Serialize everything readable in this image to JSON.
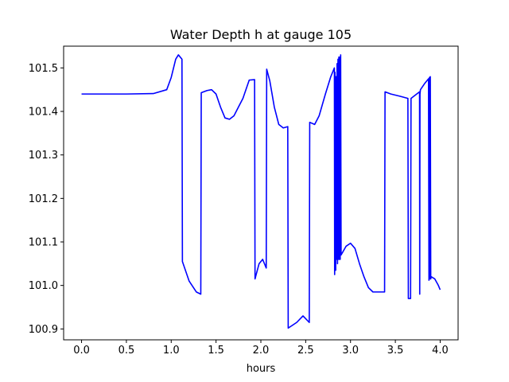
{
  "chart_data": {
    "type": "line",
    "title": "Water Depth h at gauge 105",
    "xlabel": "hours",
    "ylabel": "",
    "xlim": [
      -0.2,
      4.2
    ],
    "ylim": [
      100.875,
      101.55
    ],
    "x_ticks": [
      {
        "value": 0.0,
        "label": "0.0"
      },
      {
        "value": 0.5,
        "label": "0.5"
      },
      {
        "value": 1.0,
        "label": "1.0"
      },
      {
        "value": 1.5,
        "label": "1.5"
      },
      {
        "value": 2.0,
        "label": "2.0"
      },
      {
        "value": 2.5,
        "label": "2.5"
      },
      {
        "value": 3.0,
        "label": "3.0"
      },
      {
        "value": 3.5,
        "label": "3.5"
      },
      {
        "value": 4.0,
        "label": "4.0"
      }
    ],
    "y_ticks": [
      {
        "value": 100.9,
        "label": "100.9"
      },
      {
        "value": 101.0,
        "label": "101.0"
      },
      {
        "value": 101.1,
        "label": "101.1"
      },
      {
        "value": 101.2,
        "label": "101.2"
      },
      {
        "value": 101.3,
        "label": "101.3"
      },
      {
        "value": 101.4,
        "label": "101.4"
      },
      {
        "value": 101.5,
        "label": "101.5"
      }
    ],
    "grid": false,
    "series": [
      {
        "color": "#0000ff",
        "x": [
          0.0,
          0.5,
          0.8,
          0.95,
          1.0,
          1.05,
          1.08,
          1.12,
          1.125,
          1.2,
          1.28,
          1.33,
          1.335,
          1.4,
          1.45,
          1.5,
          1.55,
          1.6,
          1.65,
          1.7,
          1.75,
          1.8,
          1.87,
          1.93,
          1.935,
          1.98,
          2.02,
          2.06,
          2.065,
          2.1,
          2.15,
          2.2,
          2.25,
          2.3,
          2.305,
          2.4,
          2.47,
          2.54,
          2.545,
          2.6,
          2.65,
          2.72,
          2.78,
          2.82,
          2.823,
          2.827,
          2.835,
          2.838,
          2.845,
          2.85,
          2.855,
          2.86,
          2.865,
          2.87,
          2.875,
          2.88,
          2.885,
          2.89,
          2.895,
          2.95,
          3.0,
          3.05,
          3.1,
          3.15,
          3.2,
          3.25,
          3.3,
          3.38,
          3.385,
          3.45,
          3.55,
          3.64,
          3.645,
          3.67,
          3.675,
          3.77,
          3.772,
          3.775,
          3.78,
          3.83,
          3.87,
          3.875,
          3.88,
          3.885,
          3.89,
          3.895,
          3.9,
          3.94,
          3.98,
          4.0
        ],
        "y": [
          101.44,
          101.44,
          101.441,
          101.45,
          101.478,
          101.52,
          101.53,
          101.52,
          101.055,
          101.01,
          100.985,
          100.98,
          101.443,
          101.448,
          101.45,
          101.44,
          101.41,
          101.385,
          101.382,
          101.39,
          101.41,
          101.43,
          101.472,
          101.473,
          101.015,
          101.05,
          101.06,
          101.04,
          101.497,
          101.47,
          101.41,
          101.37,
          101.362,
          101.365,
          100.902,
          100.915,
          100.93,
          100.915,
          101.375,
          101.37,
          101.39,
          101.44,
          101.48,
          101.5,
          101.025,
          101.49,
          101.035,
          101.48,
          101.06,
          101.51,
          101.05,
          101.52,
          101.06,
          101.525,
          101.06,
          101.525,
          101.06,
          101.53,
          101.07,
          101.09,
          101.097,
          101.085,
          101.05,
          101.02,
          100.995,
          100.985,
          100.985,
          100.985,
          101.445,
          101.44,
          101.435,
          101.43,
          100.97,
          100.97,
          101.43,
          101.445,
          100.98,
          101.44,
          101.45,
          101.465,
          101.475,
          101.012,
          101.478,
          101.015,
          101.48,
          101.015,
          101.02,
          101.015,
          101.0,
          100.99
        ]
      }
    ]
  }
}
